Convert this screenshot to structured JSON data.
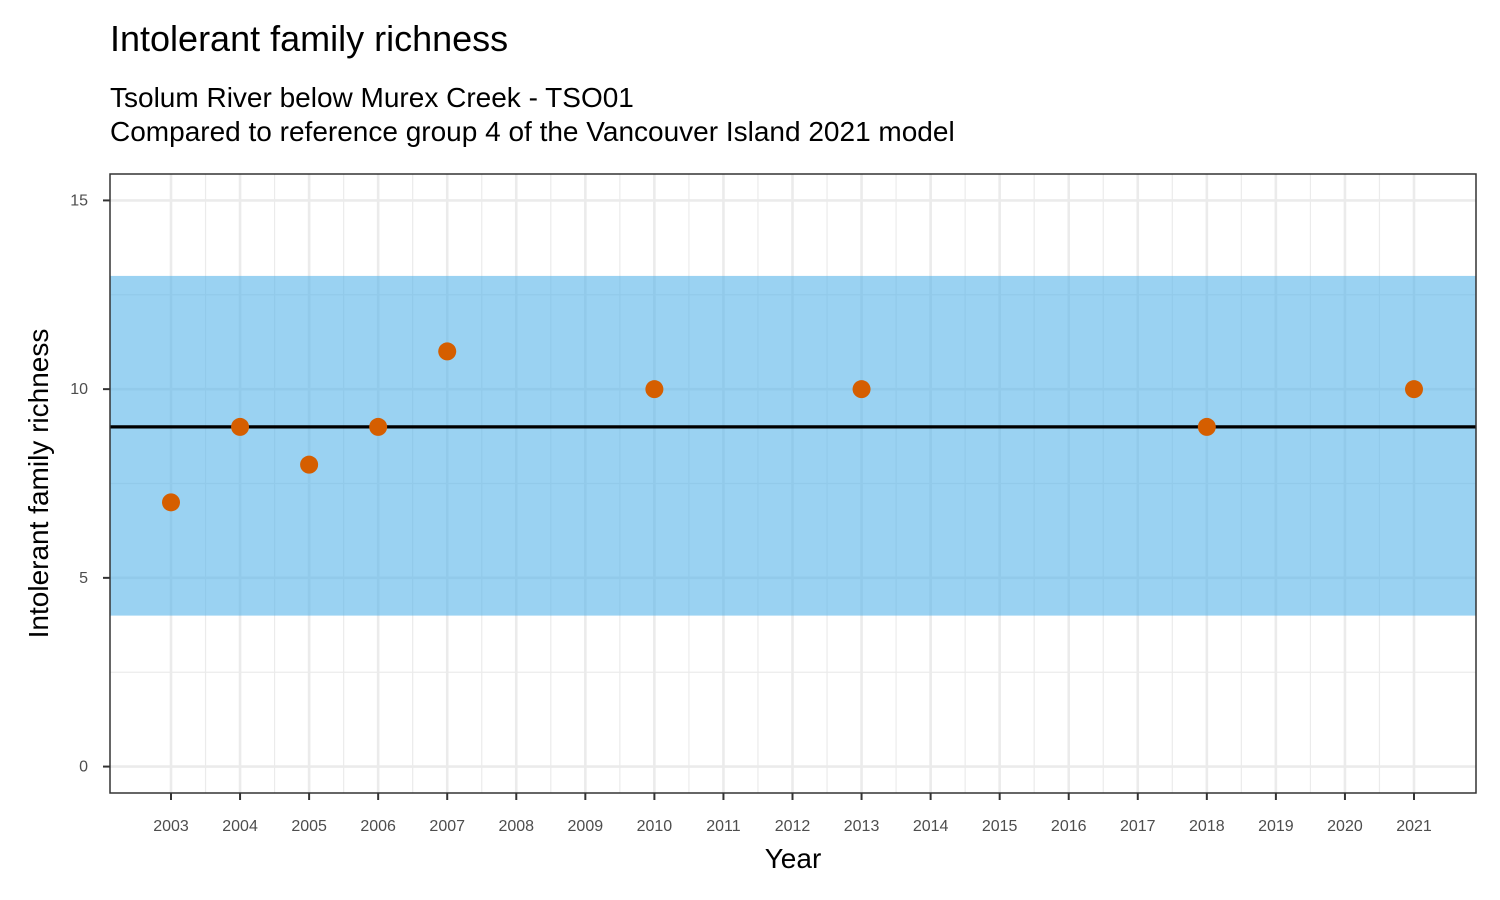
{
  "chart_data": {
    "type": "scatter",
    "title": "Intolerant family richness",
    "subtitle_lines": [
      "Tsolum River below Murex Creek - TSO01",
      "Compared to reference group 4 of the Vancouver Island 2021 model"
    ],
    "xlabel": "Year",
    "ylabel": "Intolerant family richness",
    "x_categories": [
      "2003",
      "2004",
      "2005",
      "2006",
      "2007",
      "2008",
      "2009",
      "2010",
      "2011",
      "2012",
      "2013",
      "2014",
      "2015",
      "2016",
      "2017",
      "2018",
      "2019",
      "2020",
      "2021"
    ],
    "y_ticks": [
      0,
      5,
      10,
      15
    ],
    "ylim": [
      -0.7,
      15.7
    ],
    "reference_band": {
      "ymin": 4,
      "ymax": 13,
      "color": "#56b4e9"
    },
    "reference_line": {
      "y": 9,
      "color": "#000000"
    },
    "points": [
      {
        "x": "2003",
        "y": 7
      },
      {
        "x": "2004",
        "y": 9
      },
      {
        "x": "2005",
        "y": 8
      },
      {
        "x": "2006",
        "y": 9
      },
      {
        "x": "2007",
        "y": 11
      },
      {
        "x": "2010",
        "y": 10
      },
      {
        "x": "2013",
        "y": 10
      },
      {
        "x": "2018",
        "y": 9
      },
      {
        "x": "2021",
        "y": 10
      }
    ],
    "point_color": "#d55e00",
    "grid": true,
    "legend": "none"
  }
}
